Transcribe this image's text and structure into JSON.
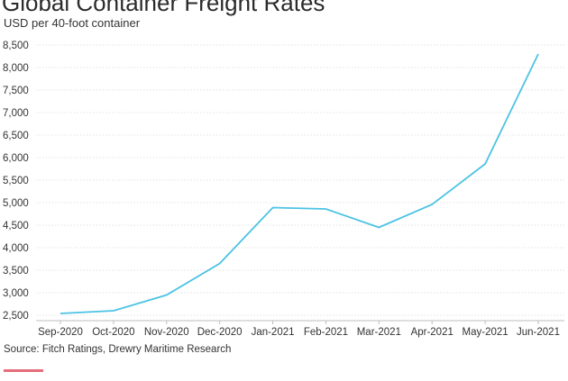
{
  "chart_data": {
    "type": "line",
    "title": "Global Container Freight Rates",
    "subtitle": "USD per 40-foot container",
    "source": "Source: Fitch Ratings, Drewry Maritime Research",
    "categories": [
      "Sep-2020",
      "Oct-2020",
      "Nov-2020",
      "Dec-2020",
      "Jan-2021",
      "Feb-2021",
      "Mar-2021",
      "Apr-2021",
      "May-2021",
      "Jun-2021"
    ],
    "series": [
      {
        "values": [
          2540,
          2600,
          2950,
          3650,
          4890,
          4860,
          4450,
          4960,
          5860,
          8300
        ]
      }
    ],
    "y_ticks": [
      2500,
      3000,
      3500,
      4000,
      4500,
      5000,
      5500,
      6000,
      6500,
      7000,
      7500,
      8000,
      8500
    ],
    "y_tick_labels": [
      "2,500",
      "3,000",
      "3,500",
      "4,000",
      "4,500",
      "5,000",
      "5,500",
      "6,000",
      "6,500",
      "7,000",
      "7,500",
      "8,000",
      "8,500"
    ],
    "ylim": [
      2500,
      8500
    ],
    "grid": true,
    "line_color": "#4cc3e3"
  }
}
